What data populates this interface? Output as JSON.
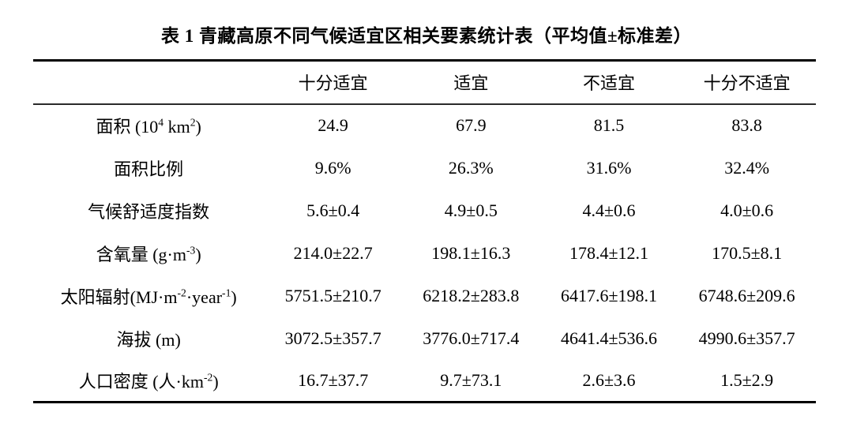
{
  "title": "表 1 青藏高原不同气候适宜区相关要素统计表（平均值±标准差）",
  "table": {
    "columns": [
      "",
      "十分适宜",
      "适宜",
      "不适宜",
      "十分不适宜"
    ],
    "rows": [
      {
        "label_html": "面积 (10<sup>4</sup> km<sup>2</sup>)",
        "label_text": "面积 (10^4 km^2)",
        "values": [
          "24.9",
          "67.9",
          "81.5",
          "83.8"
        ]
      },
      {
        "label_html": "面积比例",
        "label_text": "面积比例",
        "values": [
          "9.6%",
          "26.3%",
          "31.6%",
          "32.4%"
        ]
      },
      {
        "label_html": "气候舒适度指数",
        "label_text": "气候舒适度指数",
        "values": [
          "5.6±0.4",
          "4.9±0.5",
          "4.4±0.6",
          "4.0±0.6"
        ]
      },
      {
        "label_html": "含氧量 (g·m<sup>-3</sup>)",
        "label_text": "含氧量 (g·m^-3)",
        "values": [
          "214.0±22.7",
          "198.1±16.3",
          "178.4±12.1",
          "170.5±8.1"
        ]
      },
      {
        "label_html": "太阳辐射(MJ·m<sup>-2</sup>·year<sup>-1</sup>)",
        "label_text": "太阳辐射(MJ·m^-2·year^-1)",
        "values": [
          "5751.5±210.7",
          "6218.2±283.8",
          "6417.6±198.1",
          "6748.6±209.6"
        ]
      },
      {
        "label_html": "海拔 (m)",
        "label_text": "海拔 (m)",
        "values": [
          "3072.5±357.7",
          "3776.0±717.4",
          "4641.4±536.6",
          "4990.6±357.7"
        ]
      },
      {
        "label_html": "人口密度 (人·km<sup>-2</sup>)",
        "label_text": "人口密度 (人·km^-2)",
        "values": [
          "16.7±37.7",
          "9.7±73.1",
          "2.6±3.6",
          "1.5±2.9"
        ]
      }
    ]
  }
}
